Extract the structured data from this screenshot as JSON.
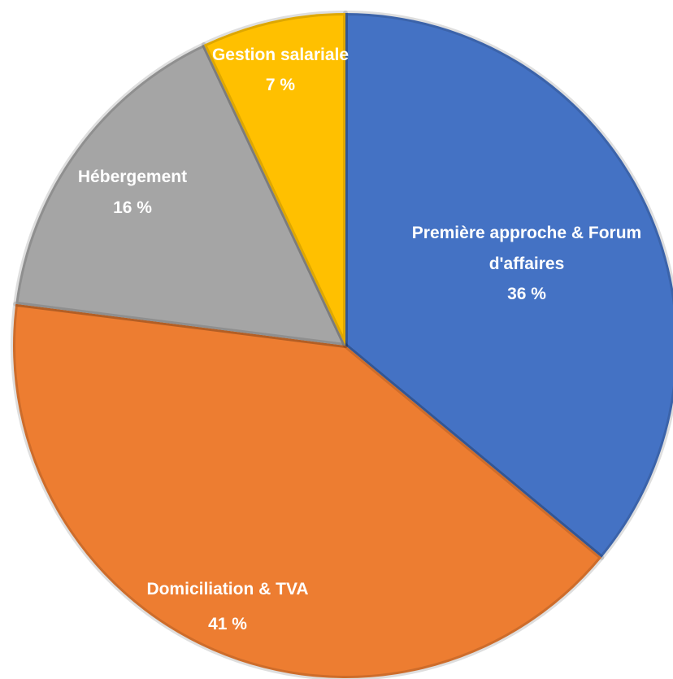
{
  "chart_data": {
    "type": "pie",
    "categories": [
      "Première approche & Forum d'affaires",
      "Domiciliation & TVA",
      "Hébergement",
      "Gestion salariale"
    ],
    "values": [
      36,
      41,
      16,
      7
    ],
    "value_labels": [
      "36 %",
      "41 %",
      "16 %",
      "7 %"
    ],
    "colors": [
      "#4472c4",
      "#ed7d31",
      "#a5a5a5",
      "#ffc000"
    ]
  }
}
